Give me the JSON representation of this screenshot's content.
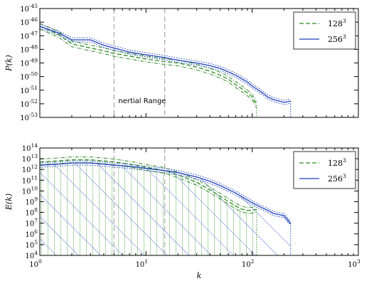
{
  "chart_data": [
    {
      "type": "line",
      "ylabel": "P(k)",
      "xscale": "log",
      "yscale": "log",
      "xlim": [
        1,
        1000
      ],
      "ylim": [
        1e-53,
        1e-45
      ],
      "x_ticks": [
        "10^0",
        "10^1",
        "10^2",
        "10^3"
      ],
      "y_ticks": [
        "10^-53",
        "10^-52",
        "10^-51",
        "10^-50",
        "10^-49",
        "10^-48",
        "10^-47",
        "10^-46",
        "10^-45"
      ],
      "vlines": [
        5,
        15
      ],
      "annotation": "nertial Range",
      "legend": {
        "placement": "top-right",
        "entries": [
          {
            "label": "128",
            "sup": "3",
            "style": "dashed",
            "color": "#2e8b22"
          },
          {
            "label": "256",
            "sup": "3",
            "style": "solid",
            "color": "#1f3fbf"
          }
        ]
      },
      "series": [
        {
          "name": "128^3",
          "color": "#2e8b22",
          "style": "dashed",
          "x": [
            1,
            1.5,
            2,
            3,
            4,
            5,
            7,
            10,
            15,
            20,
            30,
            40,
            50,
            60,
            70,
            80,
            90,
            100,
            110
          ],
          "y": [
            -46.3,
            -46.9,
            -47.6,
            -47.9,
            -48.1,
            -48.3,
            -48.5,
            -48.7,
            -48.9,
            -49.0,
            -49.3,
            -49.6,
            -49.9,
            -50.2,
            -50.6,
            -50.9,
            -51.2,
            -51.5,
            -52.1
          ]
        },
        {
          "name": "256^3",
          "color": "#1f3fbf",
          "style": "solid",
          "x": [
            1,
            1.5,
            2,
            3,
            4,
            5,
            7,
            10,
            15,
            20,
            30,
            40,
            50,
            70,
            90,
            100,
            120,
            140,
            160,
            180,
            200,
            230
          ],
          "y": [
            -46.3,
            -46.8,
            -47.3,
            -47.3,
            -47.7,
            -47.9,
            -48.2,
            -48.4,
            -48.6,
            -48.8,
            -49.0,
            -49.2,
            -49.4,
            -49.9,
            -50.4,
            -50.7,
            -51.1,
            -51.5,
            -51.7,
            -51.8,
            -51.9,
            -51.8
          ]
        }
      ]
    },
    {
      "type": "line",
      "xlabel": "k",
      "ylabel": "E(k)",
      "xscale": "log",
      "yscale": "log",
      "xlim": [
        1,
        1000
      ],
      "ylim": [
        10000.0,
        100000000000000.0
      ],
      "x_ticks": [
        "10^0",
        "10^1",
        "10^2",
        "10^3"
      ],
      "y_ticks": [
        "10^4",
        "10^5",
        "10^6",
        "10^7",
        "10^8",
        "10^9",
        "10^10",
        "10^11",
        "10^12",
        "10^13",
        "10^14"
      ],
      "vlines": [
        5,
        15
      ],
      "legend": {
        "placement": "top-right",
        "entries": [
          {
            "label": "128",
            "sup": "3",
            "style": "dashed",
            "color": "#2e8b22"
          },
          {
            "label": "256",
            "sup": "3",
            "style": "solid",
            "color": "#1f3fbf"
          }
        ]
      },
      "series": [
        {
          "name": "128^3",
          "color": "#2e8b22",
          "style": "dashed",
          "x": [
            1,
            1.5,
            2,
            3,
            4,
            5,
            7,
            10,
            15,
            20,
            30,
            40,
            50,
            60,
            70,
            80,
            90,
            100,
            110
          ],
          "y": [
            12.7,
            12.8,
            12.9,
            12.9,
            12.8,
            12.7,
            12.5,
            12.2,
            11.9,
            11.5,
            10.8,
            10.1,
            9.5,
            9.0,
            8.6,
            8.3,
            8.2,
            8.2,
            8.3
          ]
        },
        {
          "name": "256^3",
          "color": "#1f3fbf",
          "style": "solid",
          "x": [
            1,
            1.5,
            2,
            3,
            4,
            5,
            7,
            10,
            15,
            20,
            30,
            40,
            50,
            70,
            100,
            120,
            140,
            160,
            180,
            200,
            230
          ],
          "y": [
            12.4,
            12.5,
            12.6,
            12.6,
            12.5,
            12.4,
            12.3,
            12.1,
            11.9,
            11.7,
            11.3,
            10.9,
            10.5,
            9.8,
            8.9,
            8.5,
            8.2,
            7.9,
            7.8,
            7.7,
            7.0
          ]
        }
      ]
    }
  ]
}
